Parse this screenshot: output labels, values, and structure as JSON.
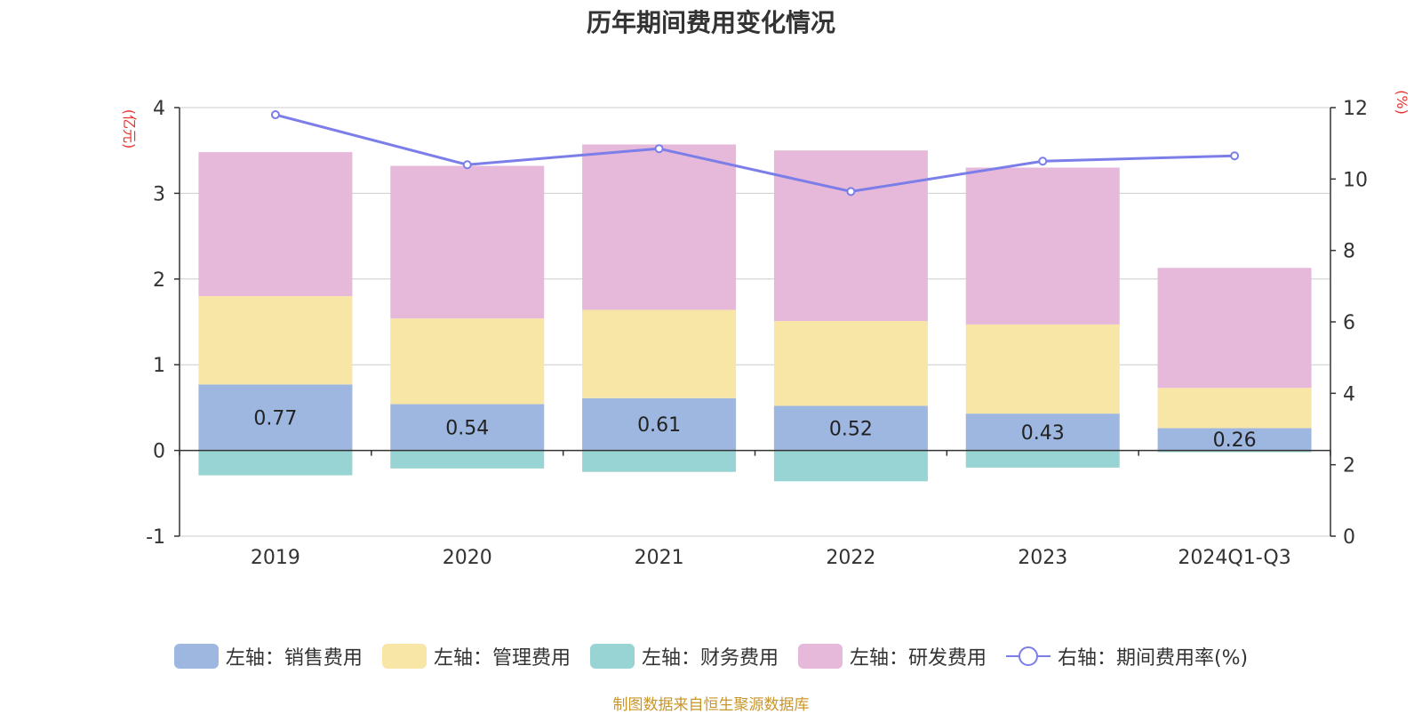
{
  "title": "历年期间费用变化情况",
  "footer": "制图数据来自恒生聚源数据库",
  "colors": {
    "sales": "#9db7e0",
    "admin": "#f7e6a6",
    "finance": "#98d4d4",
    "rnd": "#e6b8da",
    "rate": "#7b7ee8",
    "axis_label": "#e8332f",
    "footer": "#c8962a"
  },
  "legend": [
    {
      "label": "左轴：销售费用",
      "type": "swatch",
      "color": "#9db7e0"
    },
    {
      "label": "左轴：管理费用",
      "type": "swatch",
      "color": "#f7e6a6"
    },
    {
      "label": "左轴：财务费用",
      "type": "swatch",
      "color": "#98d4d4"
    },
    {
      "label": "左轴：研发费用",
      "type": "swatch",
      "color": "#e6b8da"
    },
    {
      "label": "右轴：期间费用率(%)",
      "type": "line",
      "color": "#7b7ee8"
    }
  ],
  "chart_data": {
    "type": "bar",
    "stacked": true,
    "title": "历年期间费用变化情况",
    "categories": [
      "2019",
      "2020",
      "2021",
      "2022",
      "2023",
      "2024Q1-Q3"
    ],
    "ylabel_left": "(亿元)",
    "ylabel_right": "(%)",
    "ylim_left": [
      -1,
      4
    ],
    "yticks_left": [
      -1,
      0,
      1,
      2,
      3,
      4
    ],
    "ylim_right": [
      0,
      12
    ],
    "yticks_right": [
      0,
      2,
      4,
      6,
      8,
      10,
      12
    ],
    "series": [
      {
        "name": "左轴：销售费用",
        "axis": "left",
        "color": "#9db7e0",
        "values": [
          0.77,
          0.54,
          0.61,
          0.52,
          0.43,
          0.26
        ],
        "data_labels": [
          "0.77",
          "0.54",
          "0.61",
          "0.52",
          "0.43",
          "0.26"
        ]
      },
      {
        "name": "左轴：管理费用",
        "axis": "left",
        "color": "#f7e6a6",
        "values": [
          1.03,
          1.0,
          1.03,
          0.99,
          1.04,
          0.47
        ]
      },
      {
        "name": "左轴：财务费用",
        "axis": "left",
        "color": "#98d4d4",
        "values": [
          -0.29,
          -0.21,
          -0.25,
          -0.36,
          -0.2,
          -0.02
        ]
      },
      {
        "name": "左轴：研发费用",
        "axis": "left",
        "color": "#e6b8da",
        "values": [
          1.68,
          1.78,
          1.93,
          1.99,
          1.83,
          1.4
        ]
      },
      {
        "name": "右轴：期间费用率(%)",
        "axis": "right",
        "type": "line",
        "color": "#7b7ee8",
        "values": [
          11.8,
          10.4,
          10.85,
          9.65,
          10.5,
          10.65
        ]
      }
    ]
  }
}
